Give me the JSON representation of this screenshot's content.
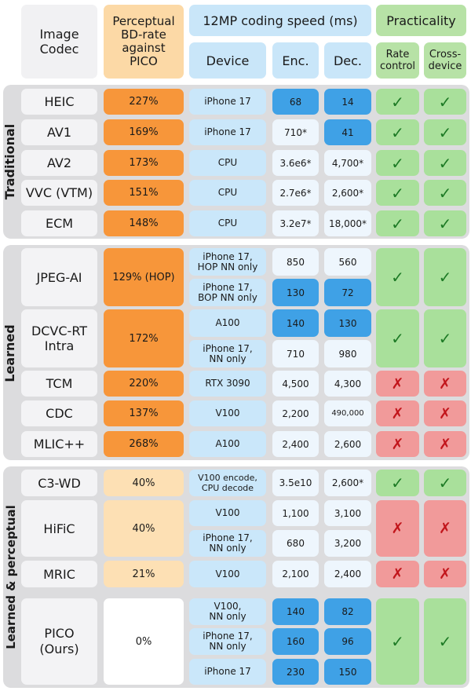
{
  "header": {
    "image_codec": "Image\nCodec",
    "bd_rate": "Perceptual\nBD-rate\nagainst\nPICO",
    "speed": "12MP coding speed (ms)",
    "device": "Device",
    "enc": "Enc.",
    "dec": "Dec.",
    "practicality": "Practicality",
    "rate_control": "Rate\ncontrol",
    "cross_device": "Cross-\ndevice"
  },
  "groups": {
    "traditional": "Traditional",
    "learned": "Learned",
    "perceptual": "Learned & perceptual"
  },
  "rows": {
    "heic": {
      "codec": "HEIC",
      "bd": "227%",
      "device": "iPhone 17",
      "enc": "68",
      "dec": "14",
      "rate": "✓",
      "cross": "✓"
    },
    "av1": {
      "codec": "AV1",
      "bd": "169%",
      "device": "iPhone 17",
      "enc": "710*",
      "dec": "41",
      "rate": "✓",
      "cross": "✓"
    },
    "av2": {
      "codec": "AV2",
      "bd": "173%",
      "device": "CPU",
      "enc": "3.6e6*",
      "dec": "4,700*",
      "rate": "✓",
      "cross": "✓"
    },
    "vvc": {
      "codec": "VVC (VTM)",
      "bd": "151%",
      "device": "CPU",
      "enc": "2.7e6*",
      "dec": "2,600*",
      "rate": "✓",
      "cross": "✓"
    },
    "ecm": {
      "codec": "ECM",
      "bd": "148%",
      "device": "CPU",
      "enc": "3.2e7*",
      "dec": "18,000*",
      "rate": "✓",
      "cross": "✓"
    },
    "jpegai": {
      "codec": "JPEG-AI",
      "bd": "129% (HOP)",
      "sub": [
        {
          "device": "iPhone 17,\nHOP NN only",
          "enc": "850",
          "dec": "560"
        },
        {
          "device": "iPhone 17,\nBOP NN only",
          "enc": "130",
          "dec": "72"
        }
      ],
      "rate": "✓",
      "cross": "✓"
    },
    "dcvc": {
      "codec": "DCVC-RT\nIntra",
      "bd": "172%",
      "sub": [
        {
          "device": "A100",
          "enc": "140",
          "dec": "130"
        },
        {
          "device": "iPhone 17,\nNN only",
          "enc": "710",
          "dec": "980"
        }
      ],
      "rate": "✓",
      "cross": "✓"
    },
    "tcm": {
      "codec": "TCM",
      "bd": "220%",
      "device": "RTX 3090",
      "enc": "4,500",
      "dec": "4,300",
      "rate": "✗",
      "cross": "✗"
    },
    "cdc": {
      "codec": "CDC",
      "bd": "137%",
      "device": "V100",
      "enc": "2,200",
      "dec": "490,000",
      "rate": "✗",
      "cross": "✗"
    },
    "mlic": {
      "codec": "MLIC++",
      "bd": "268%",
      "device": "A100",
      "enc": "2,400",
      "dec": "2,600",
      "rate": "✗",
      "cross": "✗"
    },
    "c3wd": {
      "codec": "C3-WD",
      "bd": "40%",
      "device": "V100 encode,\nCPU decode",
      "enc": "3.5e10",
      "dec": "2,600*",
      "rate": "✓",
      "cross": "✓"
    },
    "hific": {
      "codec": "HiFiC",
      "bd": "40%",
      "sub": [
        {
          "device": "V100",
          "enc": "1,100",
          "dec": "3,100"
        },
        {
          "device": "iPhone 17,\nNN only",
          "enc": "680",
          "dec": "3,200"
        }
      ],
      "rate": "✗",
      "cross": "✗"
    },
    "mric": {
      "codec": "MRIC",
      "bd": "21%",
      "device": "V100",
      "enc": "2,100",
      "dec": "2,400",
      "rate": "✗",
      "cross": "✗"
    },
    "pico": {
      "codec": "PICO\n(Ours)",
      "bd": "0%",
      "sub": [
        {
          "device": "V100,\nNN only",
          "enc": "140",
          "dec": "82"
        },
        {
          "device": "iPhone 17,\nNN only",
          "enc": "160",
          "dec": "96"
        },
        {
          "device": "iPhone 17",
          "enc": "230",
          "dec": "150"
        }
      ],
      "rate": "✓",
      "cross": "✓"
    }
  },
  "colors": {
    "bd_strong": "#f7963a",
    "bd_light": "#fde0b4",
    "device_blue": "#cae7fa",
    "value_highlight": "#3fa1e6",
    "value_plain": "#eef6fd",
    "practical_yes": "#a9e09b",
    "practical_no": "#f19a9a",
    "group_background": "#dcdcde"
  }
}
